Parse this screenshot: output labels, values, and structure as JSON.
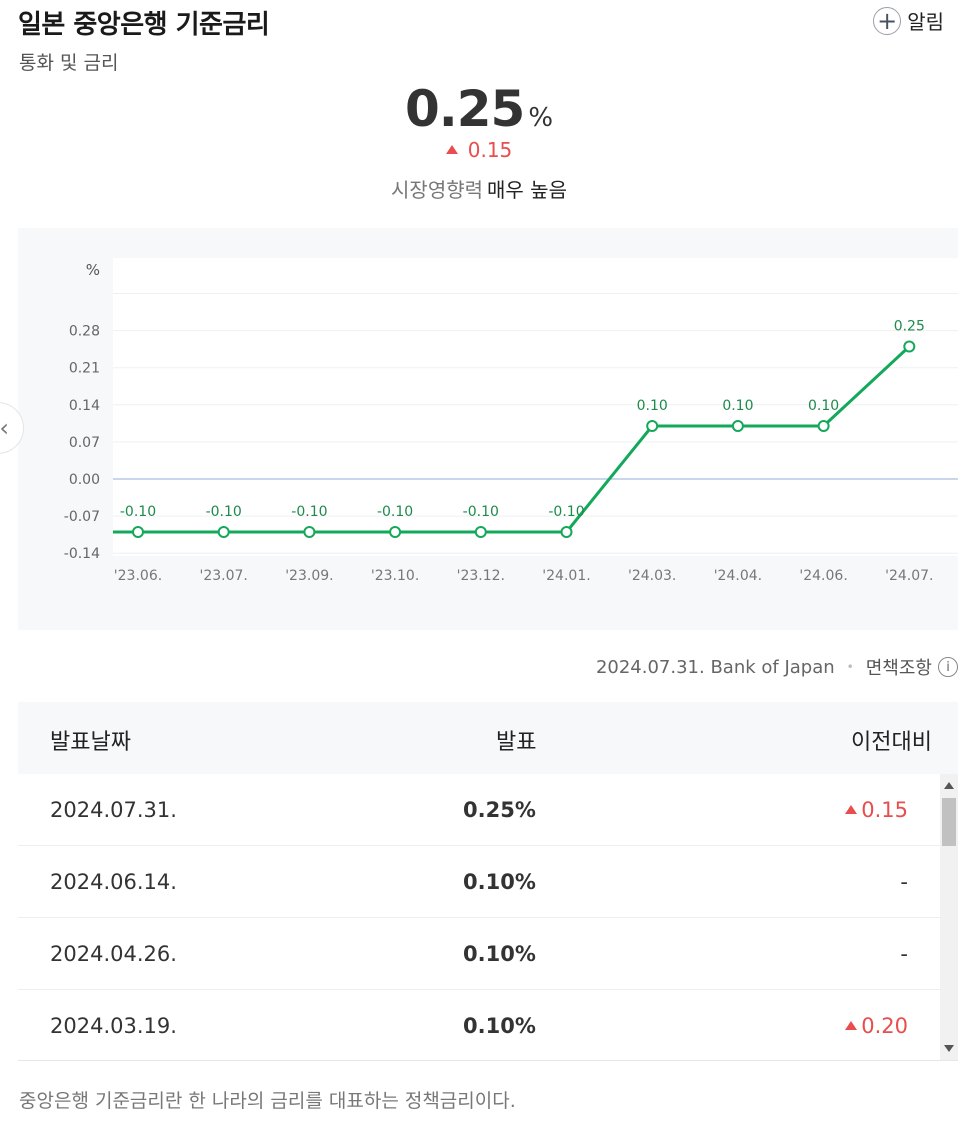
{
  "header": {
    "title": "일본 중앙은행 기준금리",
    "category": "통화 및 금리",
    "alarm_label": "알림",
    "alarm_icon": "plus-circle-icon"
  },
  "summary": {
    "value": "0.25",
    "unit": "%",
    "change": "0.15",
    "change_direction": "up",
    "impact_label": "시장영향력",
    "impact_value": "매우 높음"
  },
  "chart_data": {
    "type": "line",
    "ylabel": "%",
    "categories": [
      "'23.06.",
      "'23.07.",
      "'23.09.",
      "'23.10.",
      "'23.12.",
      "'24.01.",
      "'24.03.",
      "'24.04.",
      "'24.06.",
      "'24.07."
    ],
    "series": [
      {
        "values": [
          -0.1,
          -0.1,
          -0.1,
          -0.1,
          -0.1,
          -0.1,
          0.1,
          0.1,
          0.1,
          0.25
        ]
      }
    ],
    "data_labels": [
      "-0.10",
      "-0.10",
      "-0.10",
      "-0.10",
      "-0.10",
      "-0.10",
      "0.10",
      "0.10",
      "0.10",
      "0.25"
    ],
    "yticks": [
      "0.28",
      "0.21",
      "0.14",
      "0.07",
      "0.00",
      "-0.07",
      "-0.14"
    ],
    "ylim": [
      -0.14,
      0.35
    ],
    "grid": true,
    "line_color": "#14a85a",
    "zero_line_color": "#b8c8e8"
  },
  "source": {
    "text": "2024.07.31. Bank of Japan",
    "separator": "•",
    "disclaimer": "면책조항",
    "info_icon": "info-icon"
  },
  "table": {
    "headers": {
      "date": "발표날짜",
      "value": "발표",
      "change": "이전대비"
    },
    "rows": [
      {
        "date": "2024.07.31.",
        "value": "0.25%",
        "change": "0.15",
        "dir": "up"
      },
      {
        "date": "2024.06.14.",
        "value": "0.10%",
        "change": "-",
        "dir": "flat"
      },
      {
        "date": "2024.04.26.",
        "value": "0.10%",
        "change": "-",
        "dir": "flat"
      },
      {
        "date": "2024.03.19.",
        "value": "0.10%",
        "change": "0.20",
        "dir": "up"
      }
    ]
  },
  "description": "중앙은행 기준금리란 한 나라의 금리를 대표하는 정책금리이다.",
  "colors": {
    "up": "#e94d4d",
    "accent": "#14a85a"
  }
}
